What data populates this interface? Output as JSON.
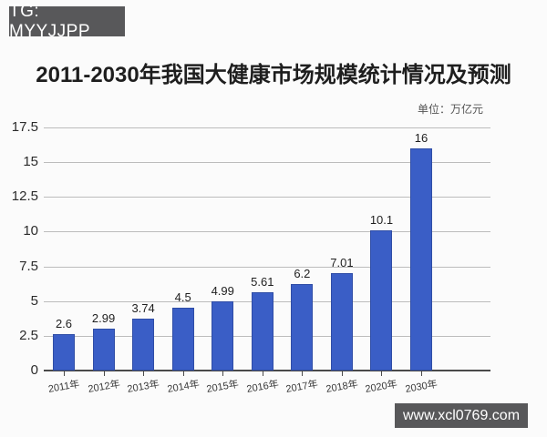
{
  "watermark_top": {
    "text": "TG: MYYJJPP",
    "bg": "#58585a",
    "color": "#ffffff"
  },
  "watermark_bottom": {
    "text": "www.xcl0769.com",
    "bg": "#58585a",
    "color": "#ffffff"
  },
  "chart_data": {
    "type": "bar",
    "title": "2011-2030年我国大健康市场规模统计情况及预测",
    "unit_label": "单位：万亿元",
    "categories": [
      "2011年",
      "2012年",
      "2013年",
      "2014年",
      "2015年",
      "2016年",
      "2017年",
      "2018年",
      "2020年",
      "2030年"
    ],
    "values": [
      2.6,
      2.99,
      3.74,
      4.5,
      4.99,
      5.61,
      6.2,
      7.01,
      10.1,
      16
    ],
    "value_labels": [
      "2.6",
      "2.99",
      "3.74",
      "4.5",
      "4.99",
      "5.61",
      "6.2",
      "7.01",
      "10.1",
      "16"
    ],
    "xlabel": "",
    "ylabel": "",
    "ylim": [
      0,
      17.5
    ],
    "yticks": [
      0,
      2.5,
      5,
      7.5,
      10,
      12.5,
      15,
      17.5
    ],
    "ytick_labels": [
      "0",
      "2.5",
      "5",
      "7.5",
      "10",
      "12.5",
      "15",
      "17.5"
    ],
    "grid": "horizontal",
    "legend": "none",
    "bar_color": "#3a5ec6",
    "gridline_color": "#bcbcbc",
    "axis_color": "#4a4a4a"
  }
}
